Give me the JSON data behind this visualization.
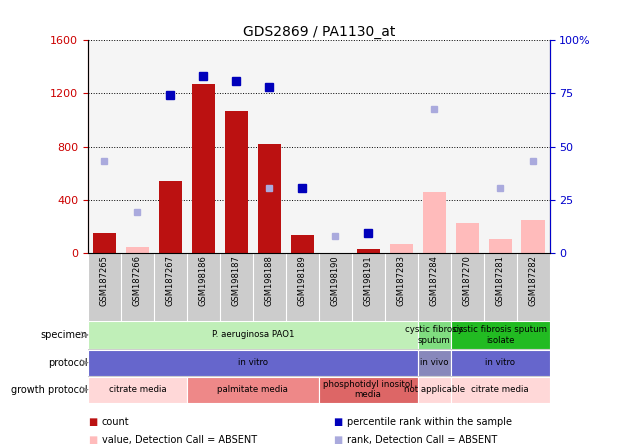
{
  "title": "GDS2869 / PA1130_at",
  "samples": [
    "GSM187265",
    "GSM187266",
    "GSM187267",
    "GSM198186",
    "GSM198187",
    "GSM198188",
    "GSM198189",
    "GSM198190",
    "GSM198191",
    "GSM187283",
    "GSM187284",
    "GSM187270",
    "GSM187281",
    "GSM187282"
  ],
  "count_present": [
    150,
    null,
    540,
    1270,
    1070,
    820,
    140,
    null,
    30,
    null,
    null,
    null,
    null,
    null
  ],
  "count_absent": [
    null,
    50,
    null,
    null,
    null,
    null,
    null,
    null,
    null,
    70,
    460,
    230,
    110,
    250
  ],
  "rank_present": [
    null,
    null,
    1190,
    null,
    null,
    null,
    null,
    null,
    null,
    null,
    null,
    null,
    null,
    null
  ],
  "rank_absent": [
    690,
    310,
    null,
    null,
    null,
    490,
    null,
    130,
    null,
    null,
    1080,
    null,
    490,
    690
  ],
  "pct_rank_present": [
    null,
    null,
    null,
    1330,
    1290,
    1250,
    490,
    null,
    150,
    null,
    null,
    null,
    null,
    null
  ],
  "pct_rank_absent": [
    null,
    null,
    null,
    null,
    null,
    null,
    null,
    null,
    null,
    null,
    null,
    null,
    null,
    null
  ],
  "ylim_left": [
    0,
    1600
  ],
  "ylim_right": [
    0,
    100
  ],
  "left_ticks": [
    0,
    400,
    800,
    1200,
    1600
  ],
  "right_ticks": [
    0,
    25,
    50,
    75,
    100
  ],
  "right_tick_labels": [
    "0",
    "25",
    "50",
    "75",
    "100%"
  ],
  "specimen_groups": [
    {
      "label": "P. aeruginosa PAO1",
      "start": 0,
      "end": 10,
      "color": "#c0efb8"
    },
    {
      "label": "cystic fibrosis\nsputum",
      "start": 10,
      "end": 11,
      "color": "#80dd80"
    },
    {
      "label": "cystic fibrosis sputum\nisolate",
      "start": 11,
      "end": 14,
      "color": "#22bb22"
    }
  ],
  "protocol_groups": [
    {
      "label": "in vitro",
      "start": 0,
      "end": 10,
      "color": "#6666cc"
    },
    {
      "label": "in vivo",
      "start": 10,
      "end": 11,
      "color": "#8888bb"
    },
    {
      "label": "in vitro",
      "start": 11,
      "end": 14,
      "color": "#6666cc"
    }
  ],
  "growth_groups": [
    {
      "label": "citrate media",
      "start": 0,
      "end": 3,
      "color": "#ffd8d8"
    },
    {
      "label": "palmitate media",
      "start": 3,
      "end": 7,
      "color": "#ee8888"
    },
    {
      "label": "phosphotidyl inositol\nmedia",
      "start": 7,
      "end": 10,
      "color": "#dd6666"
    },
    {
      "label": "not applicable",
      "start": 10,
      "end": 11,
      "color": "#ffd8d8"
    },
    {
      "label": "citrate media",
      "start": 11,
      "end": 14,
      "color": "#ffd8d8"
    }
  ],
  "bar_color_present": "#bb1111",
  "bar_color_absent": "#ffbbbb",
  "dot_color_present": "#0000bb",
  "dot_color_absent": "#aaaadd",
  "axis_left_color": "#cc0000",
  "axis_right_color": "#0000cc",
  "legend": [
    {
      "color": "#bb1111",
      "marker": "square",
      "label": "count"
    },
    {
      "color": "#0000bb",
      "marker": "square",
      "label": "percentile rank within the sample"
    },
    {
      "color": "#ffbbbb",
      "marker": "square",
      "label": "value, Detection Call = ABSENT"
    },
    {
      "color": "#aaaadd",
      "marker": "square",
      "label": "rank, Detection Call = ABSENT"
    }
  ]
}
